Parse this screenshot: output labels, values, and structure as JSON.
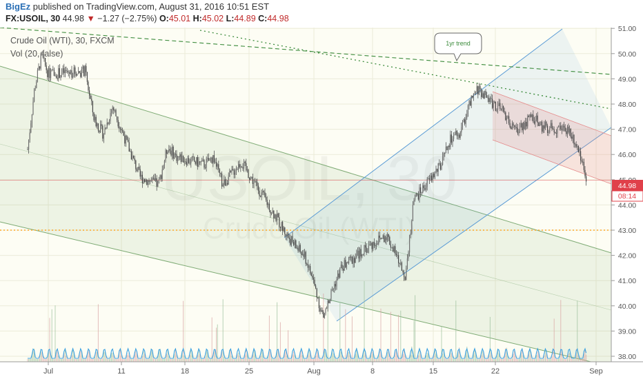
{
  "header": {
    "author": "BigEz",
    "published_text": "published on TradingView.com, August 31, 2016 10:51 EST",
    "symbol": "FX:USOIL, 30",
    "last": "44.98",
    "change_arrow": "▼",
    "change": "−1.27 (−2.75%)",
    "open_label": "O:",
    "open": "45.01",
    "high_label": "H:",
    "high": "45.02",
    "low_label": "L:",
    "low": "44.89",
    "close_label": "C:",
    "close": "44.98"
  },
  "legend": {
    "series_title": "Crude Oil (WTI), 30, FXCM",
    "volume_title": "Vol (20, false)"
  },
  "watermark": {
    "symbol": "USOIL, 30",
    "name": "Crude Oil (WTI)"
  },
  "annotation": {
    "callout": "1yr trend"
  },
  "price_axis": {
    "last_price_label": "44.98",
    "countdown_label": "08:14"
  },
  "colors": {
    "candle_up": "#6d6d6d",
    "candle_down": "#444444",
    "support_line": "#ffa726",
    "last_price": "#e0404a",
    "channel_green": "#7daa73",
    "channel_blue": "#5a9bd5",
    "channel_red": "#e58a8a",
    "trend_dotted": "#3a8a3a",
    "volume_ma": "#3aa0e0"
  },
  "chart_data": {
    "type": "candlestick",
    "title": "Crude Oil (WTI), 30, FXCM",
    "x_ticks": [
      "Jul",
      "11",
      "18",
      "25",
      "Aug",
      "8",
      "15",
      "22",
      "Sep"
    ],
    "y_ticks": [
      "38.00",
      "39.00",
      "40.00",
      "41.00",
      "42.00",
      "43.00",
      "44.00",
      "45.00",
      "46.00",
      "47.00",
      "48.00",
      "49.00",
      "50.00",
      "51.00"
    ],
    "ylim": [
      37.8,
      51.3
    ],
    "grid": true,
    "horizontal_support": 43.0,
    "last_price": 44.98,
    "price_path_approx": [
      {
        "x": "Jun 28",
        "y": 46.2
      },
      {
        "x": "Jun 29",
        "y": 48.6
      },
      {
        "x": "Jun 30",
        "y": 49.9
      },
      {
        "x": "Jul 1",
        "y": 49.2
      },
      {
        "x": "Jul 5",
        "y": 49.3
      },
      {
        "x": "Jul 6",
        "y": 47.4
      },
      {
        "x": "Jul 7",
        "y": 46.8
      },
      {
        "x": "Jul 8",
        "y": 47.9
      },
      {
        "x": "Jul 11",
        "y": 45.1
      },
      {
        "x": "Jul 13",
        "y": 44.8
      },
      {
        "x": "Jul 14",
        "y": 46.3
      },
      {
        "x": "Jul 15",
        "y": 45.9
      },
      {
        "x": "Jul 18",
        "y": 45.6
      },
      {
        "x": "Jul 19",
        "y": 45.9
      },
      {
        "x": "Jul 20",
        "y": 44.8
      },
      {
        "x": "Jul 22",
        "y": 45.7
      },
      {
        "x": "Jul 25",
        "y": 44.0
      },
      {
        "x": "Jul 27",
        "y": 42.8
      },
      {
        "x": "Jul 29",
        "y": 41.9
      },
      {
        "x": "Aug 1",
        "y": 40.9
      },
      {
        "x": "Aug 2",
        "y": 39.5
      },
      {
        "x": "Aug 3",
        "y": 40.6
      },
      {
        "x": "Aug 4",
        "y": 41.5
      },
      {
        "x": "Aug 5",
        "y": 41.8
      },
      {
        "x": "Aug 8",
        "y": 42.6
      },
      {
        "x": "Aug 9",
        "y": 42.8
      },
      {
        "x": "Aug 10",
        "y": 42.0
      },
      {
        "x": "Aug 11",
        "y": 41.2
      },
      {
        "x": "Aug 12",
        "y": 44.2
      },
      {
        "x": "Aug 15",
        "y": 45.6
      },
      {
        "x": "Aug 16",
        "y": 46.6
      },
      {
        "x": "Aug 17",
        "y": 46.8
      },
      {
        "x": "Aug 18",
        "y": 47.9
      },
      {
        "x": "Aug 19",
        "y": 48.6
      },
      {
        "x": "Aug 22",
        "y": 47.6
      },
      {
        "x": "Aug 23",
        "y": 46.9
      },
      {
        "x": "Aug 24",
        "y": 47.2
      },
      {
        "x": "Aug 25",
        "y": 47.5
      },
      {
        "x": "Aug 26",
        "y": 47.1
      },
      {
        "x": "Aug 29",
        "y": 47.0
      },
      {
        "x": "Aug 30",
        "y": 46.3
      },
      {
        "x": "Aug 31",
        "y": 44.98
      }
    ]
  }
}
